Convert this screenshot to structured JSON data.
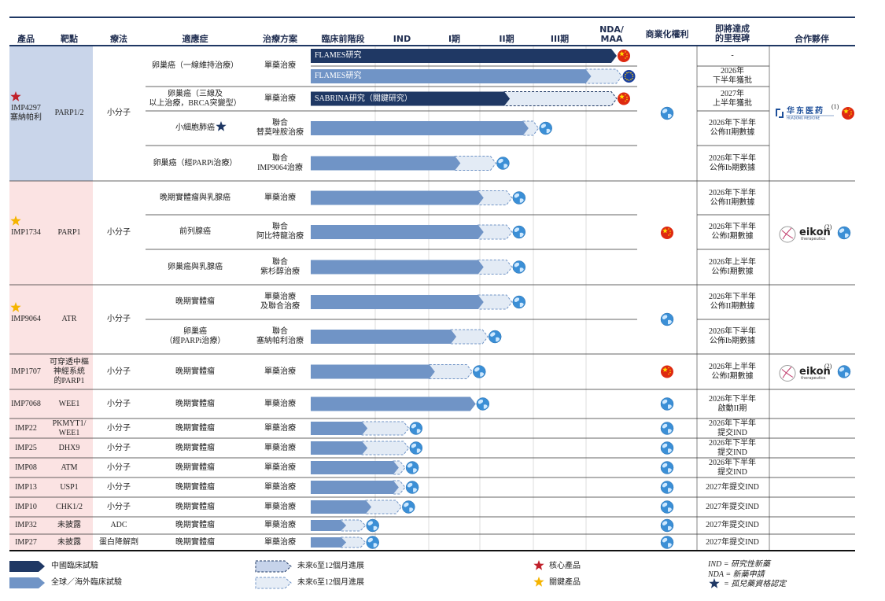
{
  "header": {
    "columns": [
      "產品",
      "靶點",
      "療法",
      "適應症",
      "治療方案"
    ],
    "stages": [
      "臨床前階段",
      "IND",
      "I期",
      "II期",
      "III期",
      "NDA/\nMAA"
    ],
    "rights": "商業化權利",
    "milestone": "即將達成\n的里程碑",
    "partner": "合作夥伴"
  },
  "products": [
    {
      "name": "IMP4297\n塞納帕利",
      "target": "PARP1/2",
      "therapy": "小分子",
      "marker": "core",
      "rights": "global",
      "partner": {
        "logo": "huadong",
        "name": "华东医药",
        "sub": "HUADONG MEDICINE",
        "note": "(1)",
        "flag": "cn"
      },
      "rows": [
        {
          "indication": "卵巢癌（一線維持治療）",
          "regimen": "單藥治療",
          "bars": [
            {
              "scope": "china",
              "label": "FLAMES研究",
              "current": 5.6,
              "planned": 5.6,
              "flag": "cn"
            },
            {
              "scope": "global",
              "label": "FLAMES研究",
              "current": 5.1,
              "planned": 5.7,
              "flag": "eu"
            }
          ],
          "milestones": [
            "-",
            "2026年\n下半年獲批"
          ]
        },
        {
          "indication": "卵巢癌（三線及\n以上治療，BRCA突變型）",
          "regimen": "單藥治療",
          "bars": [
            {
              "scope": "china",
              "label": "SABRINA研究（關鍵研究）",
              "current": 3.56,
              "planned": 5.6,
              "flag": "cn"
            }
          ],
          "milestones": [
            "2027年\n上半年獲批"
          ]
        },
        {
          "indication": "小細胞肺癌",
          "orphan": true,
          "regimen": "聯合\n替莫唑胺治療",
          "bars": [
            {
              "scope": "global",
              "current": 3.91,
              "planned": 4.1,
              "flag": "global"
            }
          ],
          "milestones": [
            "2026年下半年\n公佈II期數據"
          ]
        },
        {
          "indication": "卵巢癌（經PARPi治療）",
          "regimen": "聯合\nIMP9064治療",
          "bars": [
            {
              "scope": "global",
              "current": 2.62,
              "planned": 3.3,
              "flag": "global"
            }
          ],
          "milestones": [
            "2026年下半年\n公佈Ib期數據"
          ]
        }
      ]
    },
    {
      "name": "IMP1734",
      "target": "PARP1",
      "therapy": "小分子",
      "marker": "key",
      "rights": "cn",
      "partner": {
        "logo": "eikon",
        "name": "eikon",
        "sub": "therapeutics",
        "note": "(2)",
        "flag": "global"
      },
      "rows": [
        {
          "indication": "晚期實體瘤與乳腺癌",
          "regimen": "單藥治療",
          "bars": [
            {
              "scope": "global",
              "current": 3.07,
              "planned": 3.6,
              "flag": "global"
            }
          ],
          "milestones": [
            "2026年下半年\n公佈II期數據"
          ]
        },
        {
          "indication": "前列腺癌",
          "regimen": "聯合\n阿比特龍治療",
          "bars": [
            {
              "scope": "global",
              "current": 3.07,
              "planned": 3.6,
              "flag": "global"
            }
          ],
          "milestones": [
            "2026年下半年\n公佈I期數據"
          ]
        },
        {
          "indication": "卵巢癌與乳腺癌",
          "regimen": "聯合\n紫杉醇治療",
          "bars": [
            {
              "scope": "global",
              "current": 3.07,
              "planned": 3.6,
              "flag": "global"
            }
          ],
          "milestones": [
            "2026年上半年\n公佈I期數據"
          ]
        }
      ]
    },
    {
      "name": "IMP9064",
      "target": "ATR",
      "therapy": "小分子",
      "marker": "key",
      "rights": "global",
      "rows": [
        {
          "indication": "晚期實體瘤",
          "regimen": "單藥治療\n及聯合治療",
          "bars": [
            {
              "scope": "global",
              "current": 3.07,
              "planned": 3.6,
              "flag": "global"
            }
          ],
          "milestones": [
            "2026年下半年\n公佈II期數據"
          ]
        },
        {
          "indication": "卵巢癌\n（經PARPi治療）",
          "regimen": "聯合\n塞納帕利治療",
          "bars": [
            {
              "scope": "global",
              "current": 2.54,
              "planned": 3.15,
              "flag": "global"
            }
          ],
          "milestones": [
            "2026年下半年\n公佈Ib期數據"
          ]
        }
      ]
    },
    {
      "name": "IMP1707",
      "target": "可穿透中樞\n神經系統\n的PARP1",
      "therapy": "小分子",
      "rights": "cn",
      "partner": {
        "logo": "eikon",
        "name": "eikon",
        "sub": "therapeutics",
        "note": "(2)",
        "flag": "global"
      },
      "rows": [
        {
          "indication": "晚期實體瘤",
          "regimen": "單藥治療",
          "bars": [
            {
              "scope": "global",
              "current": 2.12,
              "planned": 2.85,
              "flag": "global"
            }
          ],
          "milestones": [
            "2026年上半年\n公佈I期數據"
          ]
        }
      ]
    },
    {
      "name": "IMP7068",
      "target": "WEE1",
      "therapy": "小分子",
      "rights": "global",
      "rows": [
        {
          "indication": "晚期實體瘤",
          "regimen": "單藥治療",
          "bars": [
            {
              "scope": "global",
              "current": 2.92,
              "planned": 2.92,
              "flag": "global"
            }
          ],
          "milestones": [
            "2026年下半年\n啟動II期"
          ]
        }
      ]
    },
    {
      "name": "IMP22",
      "target": "PKMYT1/\nWEE1",
      "therapy": "小分子",
      "rights": "global",
      "rows": [
        {
          "indication": "晚期實體瘤",
          "regimen": "單藥治療",
          "bars": [
            {
              "scope": "global",
              "current": 0.88,
              "planned": 1.63,
              "flag": "global"
            }
          ],
          "milestones": [
            "2026年下半年\n提交IND"
          ]
        }
      ]
    },
    {
      "name": "IMP25",
      "target": "DHX9",
      "therapy": "小分子",
      "rights": "global",
      "rows": [
        {
          "indication": "晚期實體瘤",
          "regimen": "單藥治療",
          "bars": [
            {
              "scope": "global",
              "current": 0.88,
              "planned": 1.63,
              "flag": "global"
            }
          ],
          "milestones": [
            "2026年下半年\n提交IND"
          ]
        }
      ]
    },
    {
      "name": "IMP08",
      "target": "ATM",
      "therapy": "小分子",
      "rights": "global",
      "rows": [
        {
          "indication": "晚期實體瘤",
          "regimen": "單藥治療",
          "bars": [
            {
              "scope": "global",
              "current": 1.44,
              "planned": 1.56,
              "flag": "global"
            }
          ],
          "milestones": [
            "2026年下半年\n提交IND"
          ]
        }
      ]
    },
    {
      "name": "IMP13",
      "target": "USP1",
      "therapy": "小分子",
      "rights": "global",
      "rows": [
        {
          "indication": "晚期實體瘤",
          "regimen": "單藥治療",
          "bars": [
            {
              "scope": "global",
              "current": 1.44,
              "planned": 1.56,
              "flag": "global"
            }
          ],
          "milestones": [
            "2027年提交IND"
          ]
        }
      ]
    },
    {
      "name": "IMP10",
      "target": "CHK1/2",
      "therapy": "小分子",
      "rights": "global",
      "rows": [
        {
          "indication": "晚期實體瘤",
          "regimen": "單藥治療",
          "bars": [
            {
              "scope": "global",
              "current": 0.94,
              "planned": 1.49,
              "flag": "global"
            }
          ],
          "milestones": [
            "2027年提交IND"
          ]
        }
      ]
    },
    {
      "name": "IMP32",
      "target": "未披露",
      "therapy": "ADC",
      "rights": "global",
      "rows": [
        {
          "indication": "晚期實體瘤",
          "regimen": "單藥治療",
          "bars": [
            {
              "scope": "global",
              "current": 0.55,
              "planned": 0.85,
              "flag": "global"
            }
          ],
          "milestones": [
            "2027年提交IND"
          ]
        }
      ]
    },
    {
      "name": "IMP27",
      "target": "未披露",
      "therapy": "蛋白降解劑",
      "rights": "global",
      "rows": [
        {
          "indication": "晚期實體瘤",
          "regimen": "單藥治療",
          "bars": [
            {
              "scope": "global",
              "current": 0.55,
              "planned": 0.85,
              "flag": "global"
            }
          ],
          "milestones": [
            "2027年提交IND"
          ]
        }
      ]
    }
  ],
  "legend": {
    "china": "中國臨床試驗",
    "global": "全球／海外臨床試驗",
    "planned_china": "未來6至12個月進展",
    "planned_global": "未來6至12個月進展",
    "core": "核心產品",
    "key": "關鍵產品",
    "notes": [
      "IND = 研究性新藥",
      "NDA = 新藥申請",
      "= 孤兒藥資格認定"
    ]
  }
}
